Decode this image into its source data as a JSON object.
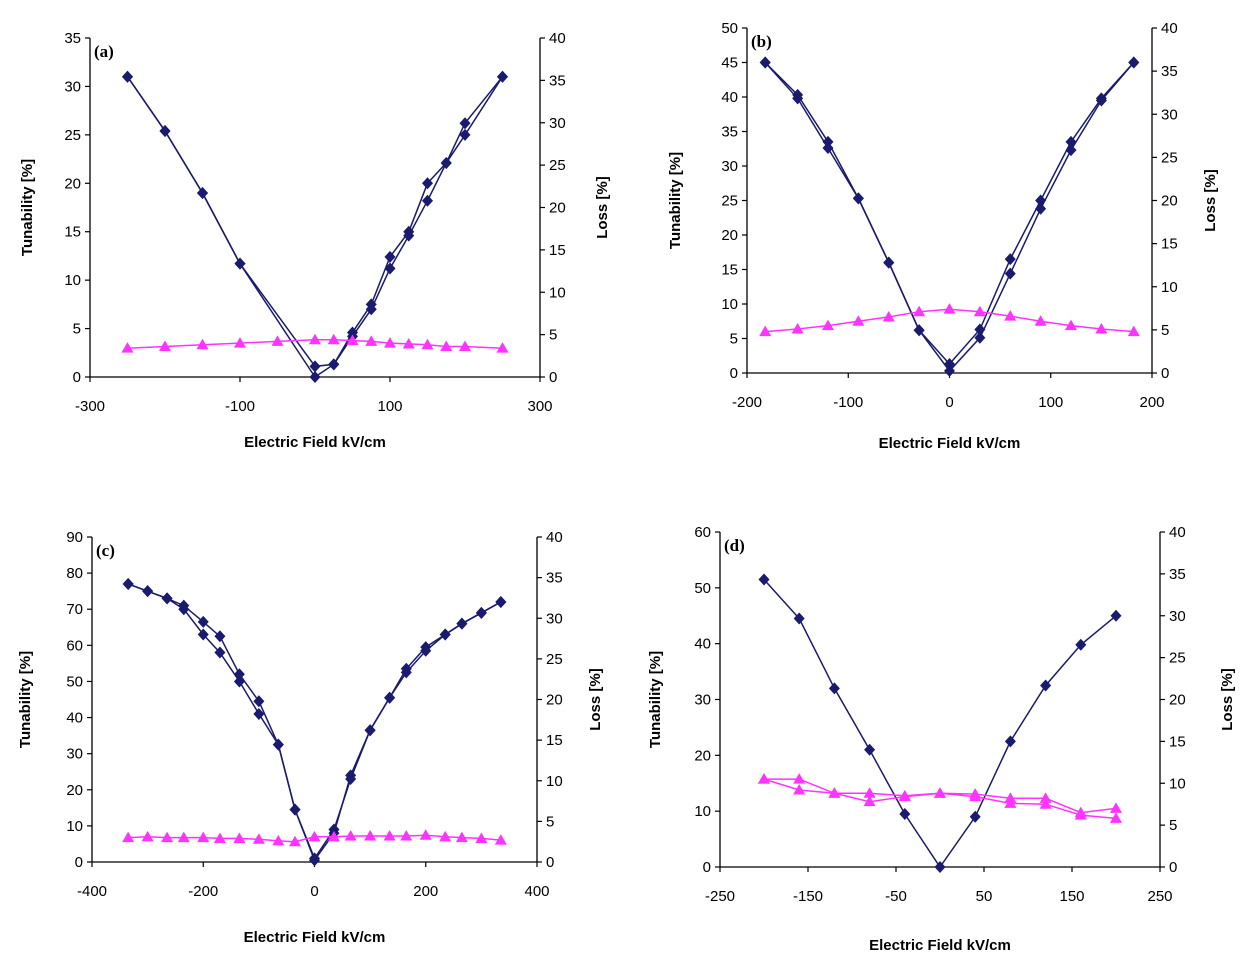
{
  "chart_data": [
    {
      "type": "line",
      "panel_label": "(a)",
      "xlabel": "Electric Field kV/cm",
      "ylabel": "Tunability [%]",
      "y2label": "Loss [%]",
      "xlim": [
        -300,
        300
      ],
      "xticks": [
        -300,
        -100,
        100,
        300
      ],
      "ylim": [
        0,
        35
      ],
      "yticks": [
        0,
        5,
        10,
        15,
        20,
        25,
        30,
        35
      ],
      "y2lim": [
        0,
        40
      ],
      "y2ticks": [
        0,
        5,
        10,
        15,
        20,
        25,
        30,
        35,
        40
      ],
      "grid": false,
      "colors": {
        "tunability": "#1a1a6e",
        "loss": "#ff33ff"
      },
      "series": [
        {
          "axis": "left",
          "marker": "diamond",
          "x": [
            -250,
            -200,
            -150,
            -100,
            0,
            25,
            50,
            75,
            100,
            125,
            150,
            175,
            200,
            250
          ],
          "y": [
            31.0,
            25.4,
            19.0,
            11.7,
            0.0,
            1.3,
            4.6,
            7.5,
            12.4,
            15.0,
            20.0,
            22.1,
            26.2,
            31.0
          ]
        },
        {
          "axis": "left",
          "marker": "diamond",
          "x": [
            -250,
            -200,
            -150,
            -100,
            0,
            25,
            50,
            75,
            100,
            125,
            150,
            175,
            200,
            250
          ],
          "y": [
            31.0,
            25.4,
            19.0,
            11.7,
            1.1,
            1.3,
            4.2,
            7.0,
            11.2,
            14.6,
            18.2,
            22.1,
            25.0,
            31.0
          ]
        },
        {
          "axis": "right",
          "marker": "triangle",
          "x": [
            -250,
            -200,
            -150,
            -100,
            -50,
            0,
            25,
            50,
            75,
            100,
            125,
            150,
            175,
            200,
            250
          ],
          "y": [
            3.4,
            3.6,
            3.8,
            4.0,
            4.2,
            4.4,
            4.4,
            4.3,
            4.2,
            4.0,
            3.9,
            3.8,
            3.6,
            3.6,
            3.4
          ]
        }
      ]
    },
    {
      "type": "line",
      "panel_label": "(b)",
      "xlabel": "Electric Field kV/cm",
      "ylabel": "Tunability [%]",
      "y2label": "Loss [%]",
      "xlim": [
        -200,
        200
      ],
      "xticks": [
        -200,
        -100,
        0,
        100,
        200
      ],
      "ylim": [
        0,
        50
      ],
      "yticks": [
        0,
        5,
        10,
        15,
        20,
        25,
        30,
        35,
        40,
        45,
        50
      ],
      "y2lim": [
        0,
        40
      ],
      "y2ticks": [
        0,
        5,
        10,
        15,
        20,
        25,
        30,
        35,
        40
      ],
      "grid": false,
      "colors": {
        "tunability": "#1a1a6e",
        "loss": "#ff33ff"
      },
      "series": [
        {
          "axis": "left",
          "marker": "diamond",
          "x": [
            -182,
            -150,
            -120,
            -90,
            -60,
            -30,
            0,
            30,
            60,
            90,
            120,
            150,
            182
          ],
          "y": [
            45.0,
            40.3,
            33.5,
            25.3,
            16.0,
            6.2,
            1.3,
            6.3,
            16.5,
            25.0,
            33.5,
            39.8,
            45.0
          ]
        },
        {
          "axis": "left",
          "marker": "diamond",
          "x": [
            -182,
            -150,
            -120,
            -90,
            -60,
            -30,
            0,
            30,
            60,
            90,
            120,
            150,
            182
          ],
          "y": [
            45.0,
            39.8,
            32.6,
            25.3,
            16.0,
            6.2,
            0.3,
            5.1,
            14.4,
            23.8,
            32.3,
            39.5,
            45.0
          ]
        },
        {
          "axis": "right",
          "marker": "triangle",
          "x": [
            -182,
            -150,
            -120,
            -90,
            -60,
            -30,
            0,
            30,
            60,
            90,
            120,
            150,
            182
          ],
          "y": [
            4.8,
            5.1,
            5.5,
            6.0,
            6.5,
            7.1,
            7.4,
            7.1,
            6.6,
            6.0,
            5.5,
            5.1,
            4.8
          ]
        }
      ]
    },
    {
      "type": "line",
      "panel_label": "(c)",
      "xlabel": "Electric Field kV/cm",
      "ylabel": "Tunability [%]",
      "y2label": "Loss [%]",
      "xlim": [
        -400,
        400
      ],
      "xticks": [
        -400,
        -200,
        0,
        200,
        400
      ],
      "ylim": [
        0,
        90
      ],
      "yticks": [
        0,
        10,
        20,
        30,
        40,
        50,
        60,
        70,
        80,
        90
      ],
      "y2lim": [
        0,
        40
      ],
      "y2ticks": [
        0,
        5,
        10,
        15,
        20,
        25,
        30,
        35,
        40
      ],
      "grid": false,
      "colors": {
        "tunability": "#1a1a6e",
        "loss": "#ff33ff"
      },
      "series": [
        {
          "axis": "left",
          "marker": "diamond",
          "x": [
            -335,
            -300,
            -265,
            -235,
            -200,
            -170,
            -135,
            -100,
            -65,
            -35,
            0,
            35,
            65,
            100,
            135,
            165,
            200,
            235,
            265,
            300,
            335
          ],
          "y": [
            77.0,
            75.0,
            73.0,
            71.0,
            66.5,
            62.5,
            52.0,
            44.5,
            32.5,
            14.5,
            1.0,
            9.0,
            23.0,
            36.5,
            45.5,
            52.5,
            58.5,
            63.0,
            66.0,
            69.0,
            72.0
          ]
        },
        {
          "axis": "left",
          "marker": "diamond",
          "x": [
            -335,
            -300,
            -265,
            -235,
            -200,
            -170,
            -135,
            -100,
            -65,
            -35,
            0,
            35,
            65,
            100,
            135,
            165,
            200,
            235,
            265,
            300,
            335
          ],
          "y": [
            77.0,
            75.0,
            73.0,
            70.0,
            63.0,
            58.0,
            50.0,
            41.0,
            32.5,
            14.5,
            0.5,
            8.0,
            24.0,
            36.5,
            45.5,
            53.5,
            59.5,
            63.0,
            66.0,
            69.0,
            72.0
          ]
        },
        {
          "axis": "right",
          "marker": "triangle",
          "x": [
            -335,
            -300,
            -265,
            -235,
            -200,
            -170,
            -135,
            -100,
            -65,
            -35,
            0,
            35,
            65,
            100,
            135,
            165,
            200,
            235,
            265,
            300,
            335
          ],
          "y": [
            3.0,
            3.1,
            3.0,
            3.0,
            3.0,
            2.9,
            2.9,
            2.8,
            2.6,
            2.5,
            3.1,
            3.1,
            3.2,
            3.2,
            3.2,
            3.2,
            3.3,
            3.1,
            3.0,
            2.9,
            2.7
          ]
        }
      ]
    },
    {
      "type": "line",
      "panel_label": "(d)",
      "xlabel": "Electric Field kV/cm",
      "ylabel": "Tunability [%]",
      "y2label": "Loss [%]",
      "xlim": [
        -250,
        250
      ],
      "xticks": [
        -250,
        -150,
        -50,
        50,
        150,
        250
      ],
      "ylim": [
        0,
        60
      ],
      "yticks": [
        0,
        10,
        20,
        30,
        40,
        50,
        60
      ],
      "y2lim": [
        0,
        40
      ],
      "y2ticks": [
        0,
        5,
        10,
        15,
        20,
        25,
        30,
        35,
        40
      ],
      "grid": false,
      "colors": {
        "tunability": "#1a1a6e",
        "loss": "#ff33ff"
      },
      "series": [
        {
          "axis": "left",
          "marker": "diamond",
          "x": [
            -200,
            -160,
            -120,
            -80,
            -40,
            0,
            40,
            80,
            120,
            160,
            200
          ],
          "y": [
            51.5,
            44.5,
            32.0,
            21.0,
            9.5,
            0.0,
            9.0,
            22.5,
            32.5,
            39.8,
            45.0
          ]
        },
        {
          "axis": "right",
          "marker": "triangle",
          "x": [
            -200,
            -160,
            -120,
            -80,
            -40,
            0,
            40,
            80,
            120,
            160,
            200
          ],
          "y": [
            10.5,
            10.5,
            8.8,
            8.8,
            8.5,
            8.8,
            8.7,
            8.2,
            8.2,
            6.5,
            7.0
          ]
        },
        {
          "axis": "right",
          "marker": "triangle",
          "x": [
            -200,
            -160,
            -120,
            -80,
            -40,
            0,
            40,
            80,
            120,
            160,
            200
          ],
          "y": [
            10.5,
            9.2,
            8.8,
            7.8,
            8.4,
            8.8,
            8.4,
            7.6,
            7.5,
            6.2,
            5.8
          ]
        }
      ]
    }
  ]
}
